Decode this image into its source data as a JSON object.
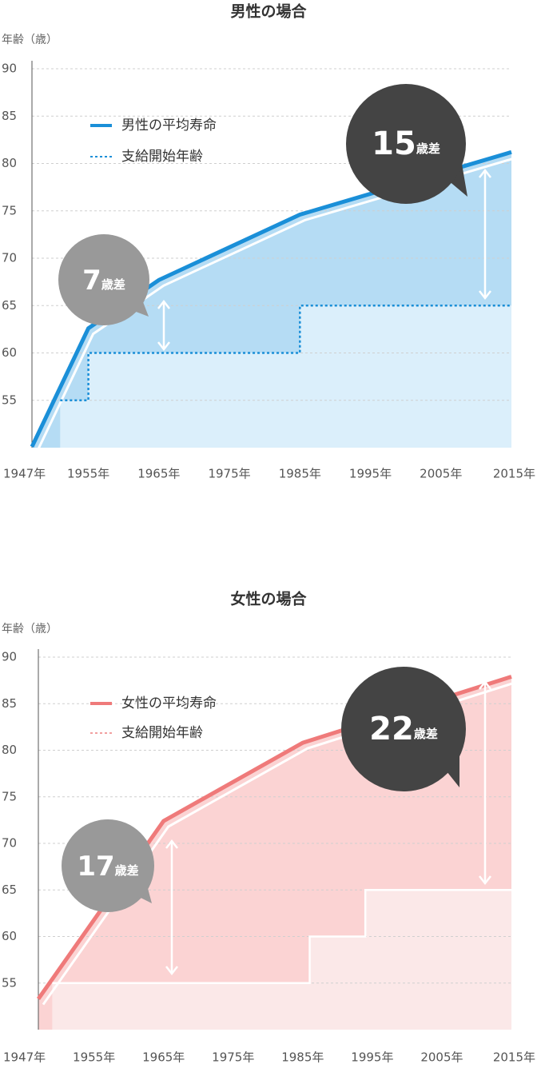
{
  "chart_data": [
    {
      "type": "line",
      "title": "男性の場合",
      "y_label": "年齢（歳）",
      "xlim": [
        1947,
        2015
      ],
      "xticks": [
        {
          "value": 1947,
          "label": "1947年"
        },
        {
          "value": 1955,
          "label": "1955年"
        },
        {
          "value": 1965,
          "label": "1965年"
        },
        {
          "value": 1975,
          "label": "1975年"
        },
        {
          "value": 1985,
          "label": "1985年"
        },
        {
          "value": 1995,
          "label": "1995年"
        },
        {
          "value": 2005,
          "label": "2005年"
        },
        {
          "value": 2015,
          "label": "2015年"
        }
      ],
      "ylim": [
        50,
        90
      ],
      "yticks": [
        55,
        60,
        65,
        70,
        75,
        80,
        85,
        90
      ],
      "grid": true,
      "series": [
        {
          "name": "男性の平均寿命",
          "color": "#1a8fd8",
          "fill": "#b5dcf4",
          "line_color": "#1a8fd8",
          "dash": "",
          "x": [
            1947,
            1955,
            1965,
            1985,
            2015
          ],
          "values": [
            50.1,
            62.6,
            67.7,
            74.6,
            81.2
          ]
        },
        {
          "name": "支給開始年齢",
          "color": "#1a8fd8",
          "fill": "#dbeffb",
          "line_color": "#1a8fd8",
          "dash": "3 3",
          "x": [
            1951,
            1955,
            1955,
            1985,
            1985,
            2015
          ],
          "values": [
            55,
            55,
            60,
            60,
            65,
            65
          ]
        }
      ],
      "annotations": [
        {
          "text": "7",
          "unit": "歳差"
        },
        {
          "text": "15",
          "unit": "歳差"
        }
      ]
    },
    {
      "type": "line",
      "title": "女性の場合",
      "y_label": "年齢（歳）",
      "xlim": [
        1947,
        2015
      ],
      "xticks": [
        {
          "value": 1947,
          "label": "1947年"
        },
        {
          "value": 1955,
          "label": "1955年"
        },
        {
          "value": 1965,
          "label": "1965年"
        },
        {
          "value": 1975,
          "label": "1975年"
        },
        {
          "value": 1985,
          "label": "1985年"
        },
        {
          "value": 1995,
          "label": "1995年"
        },
        {
          "value": 2005,
          "label": "2005年"
        },
        {
          "value": 2015,
          "label": "2015年"
        }
      ],
      "ylim": [
        50,
        90
      ],
      "yticks": [
        55,
        60,
        65,
        70,
        75,
        80,
        85,
        90
      ],
      "grid": true,
      "series": [
        {
          "name": "女性の平均寿命",
          "color": "#ef7a7a",
          "fill": "#fbd3d3",
          "line_color": "#ef7a7a",
          "dash": "",
          "x": [
            1947,
            1965,
            1985,
            2015
          ],
          "values": [
            53.3,
            72.4,
            80.8,
            87.9
          ]
        },
        {
          "name": "支給開始年齢",
          "color": "#f2a0a0",
          "fill": "#fbe8e8",
          "line_color": "#ffffff",
          "dash": "",
          "legend_dash": "3 3",
          "x": [
            1949,
            1986,
            1986,
            1994,
            1994,
            2015
          ],
          "values": [
            55,
            55,
            60,
            60,
            65,
            65
          ]
        }
      ],
      "annotations": [
        {
          "text": "17",
          "unit": "歳差"
        },
        {
          "text": "22",
          "unit": "歳差"
        }
      ]
    }
  ]
}
